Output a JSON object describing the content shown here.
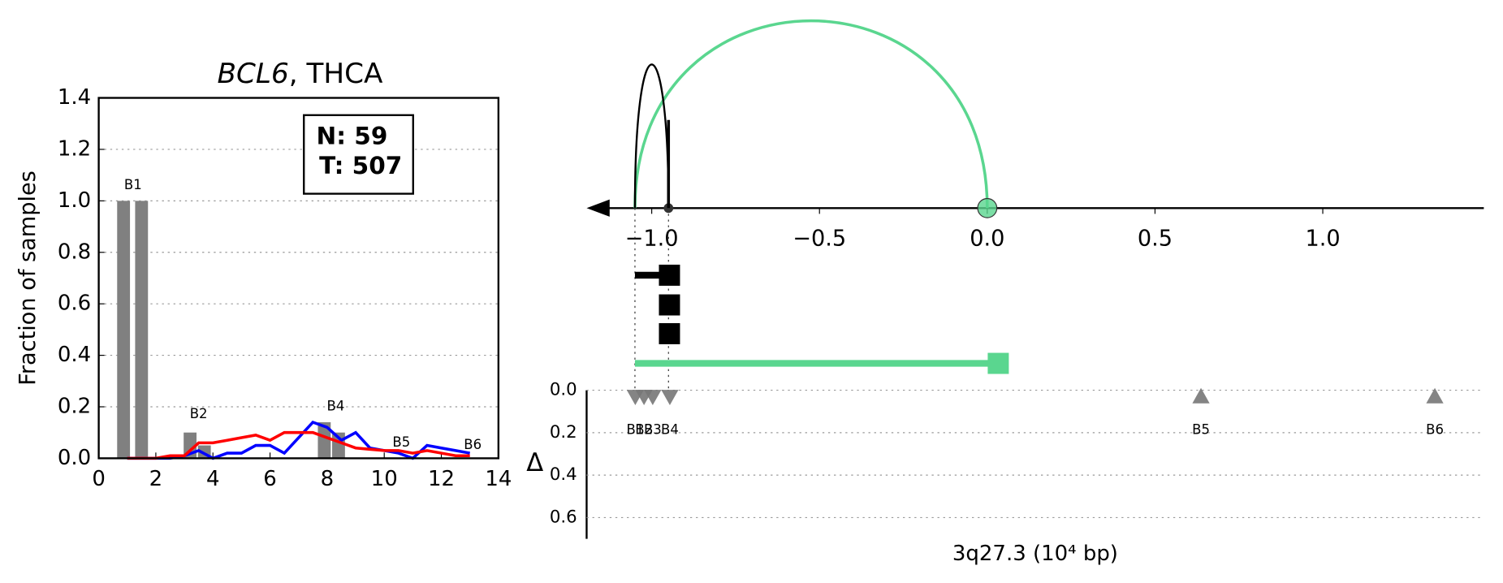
{
  "chart_data": [
    {
      "type": "bar",
      "title": [
        "BCL6",
        ", THCA"
      ],
      "ylabel": "Fraction of samples",
      "xlim": [
        0,
        14
      ],
      "ylim": [
        0,
        1.4
      ],
      "xticks": [
        0,
        2,
        4,
        6,
        8,
        10,
        12,
        14
      ],
      "yticks": [
        {
          "value": 0,
          "label": "0.0"
        },
        {
          "value": 0.2,
          "label": "0.2"
        },
        {
          "value": 0.4,
          "label": "0.4"
        },
        {
          "value": 0.6,
          "label": "0.6"
        },
        {
          "value": 0.8,
          "label": "0.8"
        },
        {
          "value": 1.0,
          "label": "1.0"
        },
        {
          "value": 1.2,
          "label": "1.2"
        },
        {
          "value": 1.4,
          "label": "1.4"
        }
      ],
      "grid": true,
      "bars": {
        "color": "#808080",
        "width": 0.45,
        "x": [
          0.87,
          1.5,
          3.2,
          3.7,
          7.9,
          8.4
        ],
        "values": [
          1.0,
          1.0,
          0.1,
          0.05,
          0.14,
          0.1
        ]
      },
      "bar_labels": [
        {
          "text": "B1",
          "x": 1.2,
          "y": 1.06
        },
        {
          "text": "B2",
          "x": 3.5,
          "y": 0.17
        },
        {
          "text": "B4",
          "x": 8.3,
          "y": 0.2
        },
        {
          "text": "B5",
          "x": 10.6,
          "y": 0.06
        },
        {
          "text": "B6",
          "x": 13.1,
          "y": 0.05
        }
      ],
      "x": [
        1,
        1.5,
        2,
        2.5,
        3,
        3.5,
        4,
        4.5,
        5,
        5.5,
        6,
        6.5,
        7,
        7.5,
        8,
        8.5,
        9,
        9.5,
        10,
        10.5,
        11,
        11.5,
        12,
        12.5,
        13
      ],
      "series": [
        {
          "color": "#0000ff",
          "values": [
            0,
            0,
            0,
            0,
            0.01,
            0.03,
            0.0,
            0.02,
            0.02,
            0.05,
            0.05,
            0.02,
            0.08,
            0.14,
            0.12,
            0.07,
            0.1,
            0.04,
            0.03,
            0.02,
            0.0,
            0.05,
            0.04,
            0.03,
            0.02
          ]
        },
        {
          "color": "#ff0000",
          "values": [
            0,
            0,
            0,
            0.01,
            0.01,
            0.06,
            0.06,
            0.07,
            0.08,
            0.09,
            0.07,
            0.1,
            0.1,
            0.1,
            0.08,
            0.06,
            0.04,
            0.035,
            0.03,
            0.03,
            0.02,
            0.03,
            0.02,
            0.01,
            0.01
          ]
        }
      ],
      "annotation": [
        "N: 59",
        "T: 507"
      ]
    },
    {
      "type": "arc",
      "xlim": [
        -1.194,
        1.48
      ],
      "xticks": [
        {
          "value": -1.0,
          "label": "−1.0"
        },
        {
          "value": -0.5,
          "label": "−0.5"
        },
        {
          "value": 0.0,
          "label": "0.0"
        },
        {
          "value": 0.5,
          "label": "0.5"
        },
        {
          "value": 1.0,
          "label": "1.0"
        }
      ],
      "arcs": [
        {
          "start": -1.05,
          "end": 0.0,
          "color": "#5ad68f"
        },
        {
          "start": -1.05,
          "end": -0.95,
          "color": "#000000"
        }
      ],
      "segments": [
        {
          "start": -1.05,
          "end": -0.95,
          "color": "#000000"
        },
        {
          "start": -0.95,
          "end": -0.95,
          "color": "#000000"
        },
        {
          "start": -0.95,
          "end": -0.95,
          "color": "#000000"
        },
        {
          "start": -1.05,
          "end": 0.03,
          "color": "#5ad68f"
        }
      ]
    },
    {
      "type": "scatter",
      "xlabel": "3q27.3 (10⁴ bp)",
      "ylabel": "Δ",
      "xlim": [
        -1.194,
        1.48
      ],
      "ylim": [
        0,
        0.7
      ],
      "y_inverted": true,
      "yticks": [
        {
          "value": 0,
          "label": "0.0"
        },
        {
          "value": 0.2,
          "label": "0.2"
        },
        {
          "value": 0.4,
          "label": "0.4"
        },
        {
          "value": 0.6,
          "label": "0.6"
        }
      ],
      "grid": true,
      "color": "#777777",
      "labels": [
        "B1",
        "B2",
        "B3",
        "B4",
        "B5",
        "B6"
      ],
      "markers": [
        "v",
        "v",
        "v",
        "v",
        "^",
        "^"
      ],
      "x": [
        -1.049,
        -1.023,
        -0.997,
        -0.946,
        0.637,
        1.334
      ],
      "values": [
        0.03,
        0.03,
        0.03,
        0.03,
        0.03,
        0.03
      ]
    }
  ]
}
